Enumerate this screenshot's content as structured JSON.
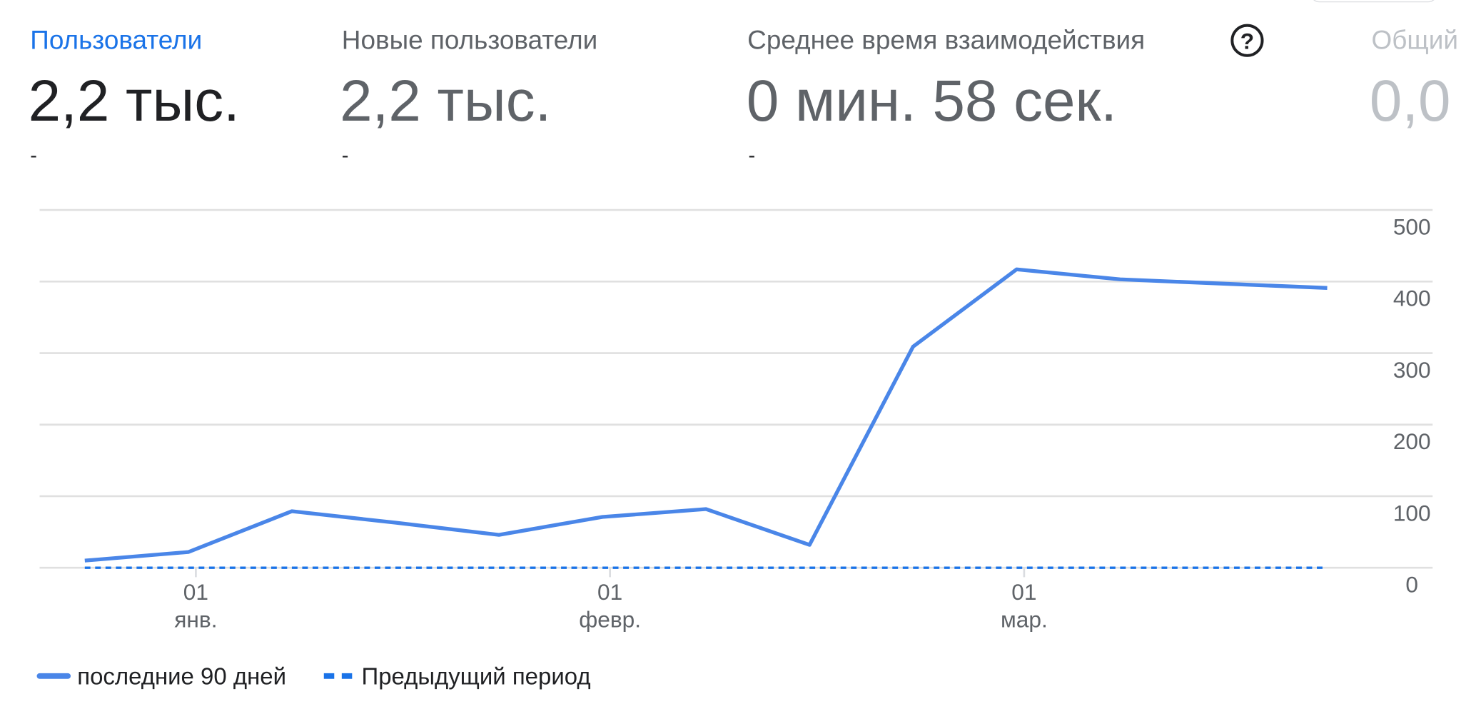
{
  "metrics": [
    {
      "title": "Пользователи",
      "value": "2,2 тыс.",
      "change": "-"
    },
    {
      "title": "Новые пользователи",
      "value": "2,2 тыс.",
      "change": "-"
    },
    {
      "title": "Среднее время взаимодействия",
      "value": "0 мин. 58 сек.",
      "change": "-"
    },
    {
      "title": "Общий",
      "value": "0,0"
    }
  ],
  "chart_data": {
    "type": "line",
    "categories": [
      null,
      "01 янв.",
      null,
      null,
      null,
      "01 февр.",
      null,
      null,
      null,
      "01 мар.",
      null,
      null,
      null
    ],
    "series": [
      {
        "name": "последние 90 дней",
        "color": "#4a86e8",
        "line_style": "solid",
        "values": [
          10,
          22,
          79,
          63,
          46,
          71,
          82,
          32,
          309,
          417,
          403,
          397,
          391
        ]
      },
      {
        "name": "Предыдущий период",
        "color": "#1a73e8",
        "line_style": "dashed",
        "values": [
          0,
          0,
          0,
          0,
          0,
          0,
          0,
          0,
          0,
          0,
          0,
          0,
          0
        ]
      }
    ],
    "ylim": [
      0,
      500
    ],
    "yticks": [
      0,
      100,
      200,
      300,
      400,
      500
    ],
    "grid": true
  }
}
